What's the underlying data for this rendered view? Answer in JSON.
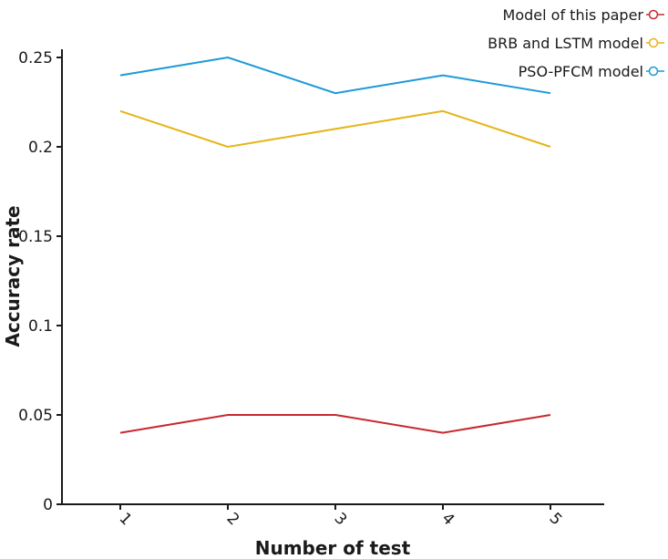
{
  "chart_data": {
    "type": "line",
    "xlabel": "Number of test",
    "ylabel": "Accuracy rate",
    "categories": [
      "1",
      "2",
      "3",
      "4",
      "5"
    ],
    "ylim": [
      0,
      0.25
    ],
    "yticks": [
      "0",
      "0.05",
      "0.1",
      "0.15",
      "0.2",
      "0.25"
    ],
    "grid": false,
    "legend_position": "top-right",
    "series": [
      {
        "name": "Model of this paper",
        "color": "#c8282e",
        "values": [
          0.04,
          0.05,
          0.05,
          0.04,
          0.05
        ]
      },
      {
        "name": "BRB and LSTM model",
        "color": "#e6b418",
        "values": [
          0.22,
          0.2,
          0.21,
          0.22,
          0.2
        ]
      },
      {
        "name": "PSO-PFCM model",
        "color": "#1c9ad6",
        "values": [
          0.24,
          0.25,
          0.23,
          0.24,
          0.23
        ]
      }
    ]
  }
}
